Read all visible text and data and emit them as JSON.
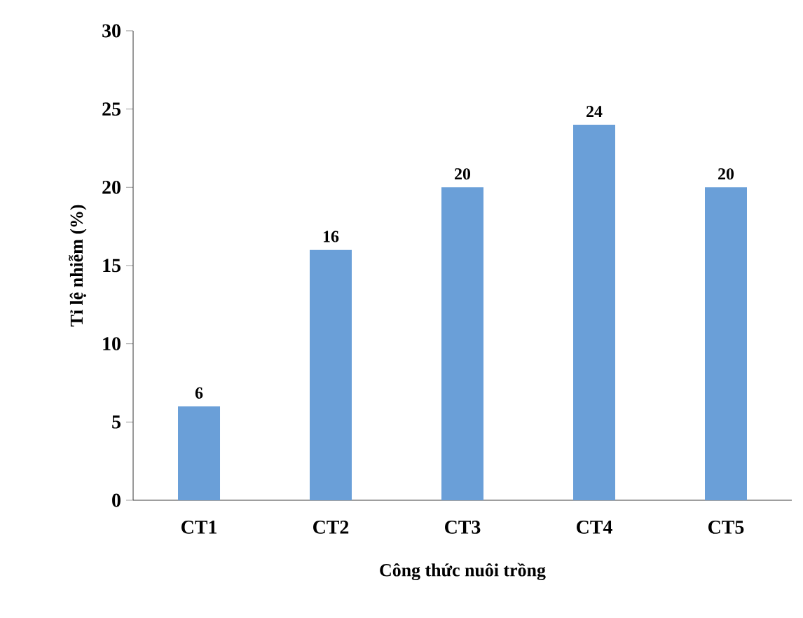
{
  "chart_data": {
    "type": "bar",
    "xlabel": "Công thức nuôi trồng",
    "ylabel": "Tỉ lệ nhiễm (%)",
    "categories": [
      "CT1",
      "CT2",
      "CT3",
      "CT4",
      "CT5"
    ],
    "values": [
      6,
      16,
      20,
      24,
      20
    ],
    "color": "#6a9fd8",
    "ylim": [
      0,
      30
    ],
    "yticks": [
      0,
      5,
      10,
      15,
      20,
      25,
      30
    ],
    "data_labels": true
  }
}
